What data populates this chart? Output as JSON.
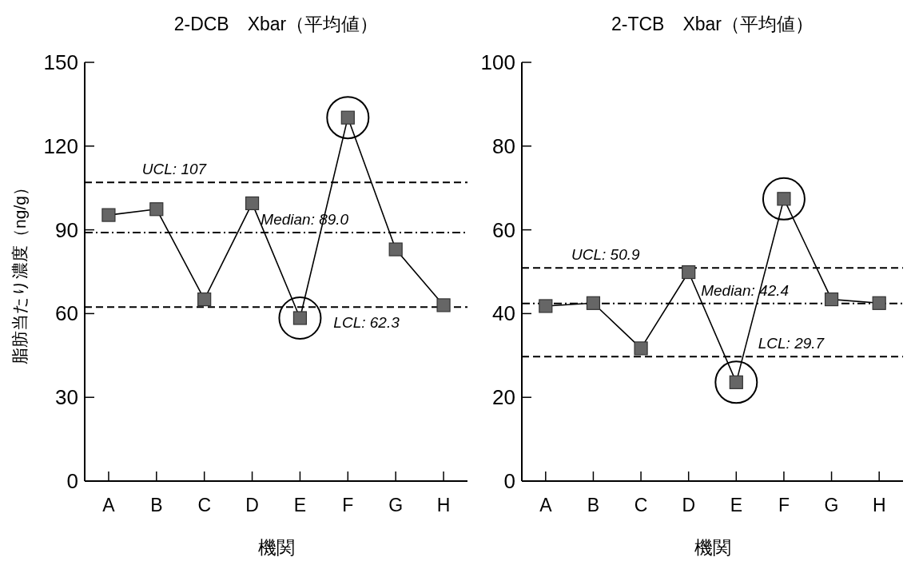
{
  "chart_data": [
    {
      "type": "line",
      "title": "2-DCB　Xbar（平均値）",
      "xlabel": "機関",
      "ylabel": "脂肪当たり濃度（ng/g）",
      "categories": [
        "A",
        "B",
        "C",
        "D",
        "E",
        "F",
        "G",
        "H"
      ],
      "series": [
        {
          "color": "#666666",
          "values": [
            95.3,
            97.4,
            65.1,
            99.5,
            58.4,
            130.2,
            83.0,
            63.0
          ]
        }
      ],
      "ylim": [
        0,
        150
      ],
      "yticks": [
        0,
        30,
        60,
        90,
        120,
        150
      ],
      "marker": "square",
      "line_style": "solid",
      "ref_lines": [
        {
          "axis": "y",
          "value": 107,
          "label": "UCL: 107",
          "line_style": "dashed",
          "color": "#000000"
        },
        {
          "axis": "y",
          "value": 89.0,
          "label": "Median: 89.0",
          "line_style": "dashdot",
          "color": "#000000"
        },
        {
          "axis": "y",
          "value": 62.3,
          "label": "LCL: 62.3",
          "line_style": "dashed",
          "color": "#000000"
        }
      ]
    },
    {
      "type": "line",
      "title": "2-TCB　Xbar（平均値）",
      "xlabel": "機関",
      "categories": [
        "A",
        "B",
        "C",
        "D",
        "E",
        "F",
        "G",
        "H"
      ],
      "series": [
        {
          "color": "#666666",
          "values": [
            41.8,
            42.5,
            31.7,
            49.9,
            23.6,
            67.4,
            43.4,
            42.5
          ]
        }
      ],
      "ylim": [
        0,
        100
      ],
      "yticks": [
        0,
        20,
        40,
        60,
        80,
        100
      ],
      "marker": "square",
      "line_style": "solid",
      "ref_lines": [
        {
          "axis": "y",
          "value": 50.9,
          "label": "UCL: 50.9",
          "line_style": "dashed",
          "color": "#000000"
        },
        {
          "axis": "y",
          "value": 42.4,
          "label": "Median: 42.4",
          "line_style": "dashdot",
          "color": "#000000"
        },
        {
          "axis": "y",
          "value": 29.7,
          "label": "LCL: 29.7",
          "line_style": "dashed",
          "color": "#000000"
        }
      ]
    }
  ]
}
